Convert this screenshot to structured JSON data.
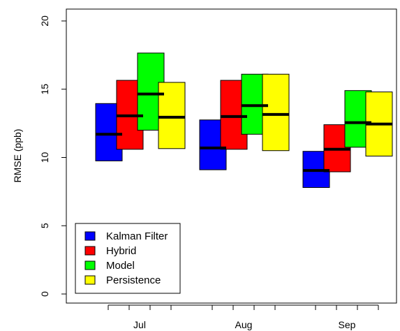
{
  "chart_data": {
    "type": "floating-bar",
    "title": "",
    "xlabel": "",
    "ylabel": "RMSE (ppb)",
    "ylim": [
      0,
      20
    ],
    "yticks": [
      "0",
      "5",
      "10",
      "15",
      "20"
    ],
    "categories": [
      "Jul",
      "Aug",
      "Sep"
    ],
    "series": [
      {
        "name": "Kalman Filter",
        "color": "#0000ff",
        "low": [
          9.75,
          9.1,
          7.8
        ],
        "high": [
          13.95,
          12.75,
          10.45
        ],
        "mid": [
          11.7,
          10.7,
          9.05
        ]
      },
      {
        "name": "Hybrid",
        "color": "#ff0000",
        "low": [
          10.6,
          10.6,
          8.95
        ],
        "high": [
          15.65,
          15.65,
          12.4
        ],
        "mid": [
          13.05,
          13.0,
          10.6
        ]
      },
      {
        "name": "Model",
        "color": "#00ff00",
        "low": [
          12.0,
          11.7,
          10.75
        ],
        "high": [
          17.65,
          16.1,
          14.9
        ],
        "mid": [
          14.65,
          13.8,
          12.55
        ]
      },
      {
        "name": "Persistence",
        "color": "#ffff00",
        "low": [
          10.65,
          10.5,
          10.1
        ],
        "high": [
          15.5,
          16.1,
          14.8
        ],
        "mid": [
          12.95,
          13.15,
          12.45
        ]
      }
    ],
    "legend_position": "bottom-left",
    "grid": false
  }
}
